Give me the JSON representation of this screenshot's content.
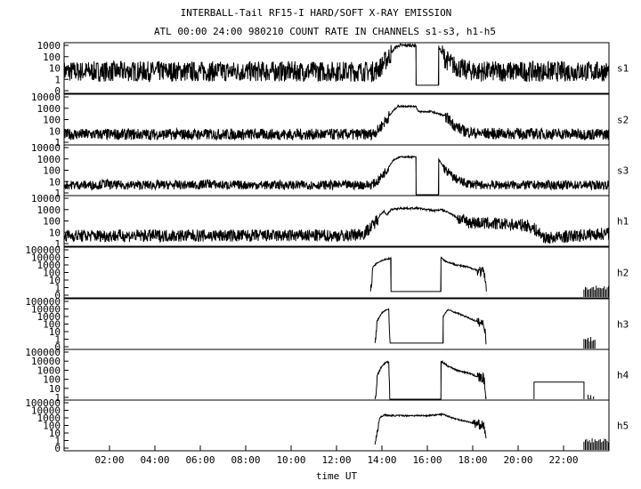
{
  "chart_data": {
    "type": "line",
    "title": "INTERBALL-Tail RF15-I HARD/SOFT X-RAY EMISSION",
    "subtitle": "ATL 00:00 24:00 980210  COUNT RATE IN CHANNELS s1-s3, h1-h5",
    "xlabel": "time UT",
    "xlim": [
      0,
      24
    ],
    "x_ticks": [
      "02:00",
      "04:00",
      "06:00",
      "08:00",
      "10:00",
      "12:00",
      "14:00",
      "16:00",
      "18:00",
      "20:00",
      "22:00"
    ],
    "x_tick_values": [
      2,
      4,
      6,
      8,
      10,
      12,
      14,
      16,
      18,
      20,
      22
    ],
    "yscale": "log",
    "grid": false,
    "panels": [
      {
        "name": "s1",
        "y_ticks": [
          "1000",
          "100",
          "10",
          "1",
          "0"
        ],
        "ymax": 1000,
        "noise": 0.9,
        "series": [
          [
            0,
            5
          ],
          [
            13.6,
            5
          ],
          [
            13.9,
            10
          ],
          [
            14.3,
            100
          ],
          [
            14.6,
            700
          ],
          [
            14.8,
            1000
          ],
          [
            15.5,
            1000
          ],
          [
            15.5,
            0.3
          ],
          [
            16.5,
            0.3
          ],
          [
            16.5,
            700
          ],
          [
            16.8,
            60
          ],
          [
            17.2,
            15
          ],
          [
            17.6,
            7
          ],
          [
            18.2,
            5
          ],
          [
            24,
            5
          ]
        ]
      },
      {
        "name": "s2",
        "y_ticks": [
          "10000",
          "1000",
          "100",
          "10",
          "1"
        ],
        "ymax": 10000,
        "noise": 0.5,
        "series": [
          [
            0,
            5
          ],
          [
            13.5,
            5
          ],
          [
            13.8,
            10
          ],
          [
            14.2,
            100
          ],
          [
            14.5,
            600
          ],
          [
            14.7,
            1500
          ],
          [
            15.5,
            1500
          ],
          [
            15.6,
            500
          ],
          [
            16.2,
            500
          ],
          [
            16.8,
            200
          ],
          [
            17.2,
            30
          ],
          [
            17.6,
            10
          ],
          [
            18.2,
            6
          ],
          [
            24,
            5
          ]
        ]
      },
      {
        "name": "s3",
        "y_ticks": [
          "10000",
          "1000",
          "100",
          "10",
          "1"
        ],
        "ymax": 10000,
        "noise": 0.4,
        "series": [
          [
            0,
            5
          ],
          [
            1.5,
            5
          ],
          [
            1.8,
            7
          ],
          [
            2.1,
            5
          ],
          [
            6,
            5
          ],
          [
            6.3,
            7
          ],
          [
            6.8,
            5
          ],
          [
            13.5,
            5
          ],
          [
            13.8,
            10
          ],
          [
            14.2,
            100
          ],
          [
            14.5,
            800
          ],
          [
            14.8,
            1500
          ],
          [
            15.5,
            1500
          ],
          [
            15.5,
            0.05
          ],
          [
            16.5,
            0.05
          ],
          [
            16.5,
            900
          ],
          [
            16.8,
            100
          ],
          [
            17.2,
            20
          ],
          [
            17.6,
            8
          ],
          [
            18.2,
            5
          ],
          [
            24,
            5
          ]
        ]
      },
      {
        "name": "h1",
        "y_ticks": [
          "10000",
          "1000",
          "100",
          "10",
          "1"
        ],
        "ymax": 10000,
        "noise": 0.55,
        "series": [
          [
            0,
            5
          ],
          [
            12.5,
            5
          ],
          [
            13.2,
            8
          ],
          [
            13.6,
            40
          ],
          [
            13.9,
            300
          ],
          [
            14.1,
            800
          ],
          [
            14.2,
            300
          ],
          [
            14.4,
            1000
          ],
          [
            14.8,
            1300
          ],
          [
            15.6,
            1300
          ],
          [
            16.3,
            800
          ],
          [
            16.6,
            1000
          ],
          [
            17.0,
            500
          ],
          [
            17.4,
            150
          ],
          [
            17.8,
            80
          ],
          [
            18.6,
            60
          ],
          [
            19.5,
            50
          ],
          [
            20.4,
            40
          ],
          [
            20.7,
            20
          ],
          [
            21.2,
            3
          ],
          [
            22.0,
            4
          ],
          [
            23.0,
            6
          ],
          [
            24,
            8
          ]
        ]
      },
      {
        "name": "h2",
        "y_ticks": [
          "100000",
          "10000",
          "1000",
          "100",
          "10",
          "1",
          "0"
        ],
        "ymax": 100000,
        "noise": 0.7,
        "series": [
          [
            13.5,
            0.3
          ],
          [
            13.6,
            500
          ],
          [
            13.8,
            2000
          ],
          [
            14.0,
            4000
          ],
          [
            14.2,
            6000
          ],
          [
            14.4,
            8000
          ],
          [
            14.4,
            0.3
          ],
          [
            16.6,
            0.3
          ],
          [
            16.6,
            10000
          ],
          [
            16.8,
            3000
          ],
          [
            17.3,
            1000
          ],
          [
            17.8,
            500
          ],
          [
            18.2,
            200
          ],
          [
            18.5,
            100
          ],
          [
            18.6,
            0.3
          ]
        ],
        "bursts": [
          22.9,
          24.0,
          1
        ]
      },
      {
        "name": "h3",
        "y_ticks": [
          "100000",
          "10000",
          "1000",
          "100",
          "10",
          "1",
          "0"
        ],
        "ymax": 100000,
        "noise": 0.6,
        "series": [
          [
            13.7,
            0.3
          ],
          [
            13.8,
            300
          ],
          [
            14.0,
            3000
          ],
          [
            14.2,
            8000
          ],
          [
            14.3,
            10000
          ],
          [
            14.35,
            0.3
          ],
          [
            16.7,
            0.3
          ],
          [
            16.7,
            1000
          ],
          [
            16.9,
            8000
          ],
          [
            17.3,
            3000
          ],
          [
            17.8,
            700
          ],
          [
            18.2,
            200
          ],
          [
            18.5,
            100
          ],
          [
            18.6,
            0.3
          ]
        ],
        "bursts": [
          22.9,
          23.4,
          1
        ]
      },
      {
        "name": "h4",
        "y_ticks": [
          "100000",
          "10000",
          "1000",
          "100",
          "10",
          "1"
        ],
        "ymax": 100000,
        "noise": 0.6,
        "series": [
          [
            13.7,
            0.3
          ],
          [
            13.8,
            300
          ],
          [
            14.0,
            3000
          ],
          [
            14.2,
            8000
          ],
          [
            14.3,
            8000
          ],
          [
            14.35,
            0.3
          ],
          [
            16.6,
            0.3
          ],
          [
            16.6,
            10000
          ],
          [
            16.9,
            3000
          ],
          [
            17.3,
            1000
          ],
          [
            17.8,
            500
          ],
          [
            18.2,
            200
          ],
          [
            18.5,
            100
          ],
          [
            18.6,
            0.3
          ]
        ],
        "plateau": [
          20.7,
          22.9,
          50
        ],
        "bursts": [
          22.9,
          23.4,
          1
        ]
      },
      {
        "name": "h5",
        "y_ticks": [
          "100000",
          "10000",
          "1000",
          "100",
          "10",
          "1",
          "0"
        ],
        "ymax": 100000,
        "noise": 0.6,
        "series": [
          [
            13.7,
            0.3
          ],
          [
            13.9,
            1000
          ],
          [
            14.1,
            2500
          ],
          [
            14.3,
            2000
          ],
          [
            14.5,
            2000
          ],
          [
            16.0,
            2000
          ],
          [
            16.4,
            2500
          ],
          [
            16.7,
            3000
          ],
          [
            17.2,
            800
          ],
          [
            17.8,
            300
          ],
          [
            18.2,
            150
          ],
          [
            18.5,
            100
          ],
          [
            18.6,
            0.3
          ]
        ],
        "bursts": [
          22.9,
          24.0,
          1
        ]
      }
    ]
  }
}
